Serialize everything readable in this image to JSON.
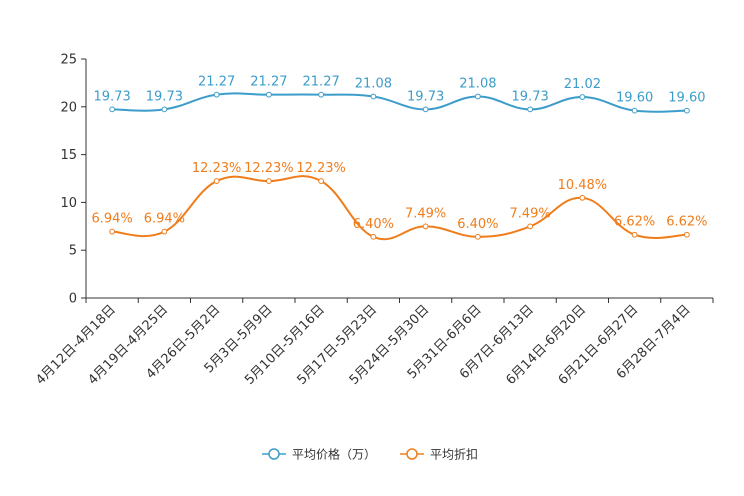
{
  "chart_data": {
    "type": "line",
    "title": "",
    "xlabel": "",
    "ylabel": "",
    "ylim": [
      0,
      25
    ],
    "yticks": [
      0,
      5,
      10,
      15,
      20,
      25
    ],
    "grid": false,
    "legend_position": "bottom",
    "categories": [
      "4月12日-4月18日",
      "4月19日-4月25日",
      "4月26日-5月2日",
      "5月3日-5月9日",
      "5月10日-5月16日",
      "5月17日-5月23日",
      "5月24日-5月30日",
      "5月31日-6月6日",
      "6月7日-6月13日",
      "6月14日-6月20日",
      "6月21日-6月27日",
      "6月28日-7月4日"
    ],
    "series": [
      {
        "name": "平均价格（万）",
        "color": "#3c9dca",
        "values": [
          19.73,
          19.73,
          21.27,
          21.27,
          21.27,
          21.08,
          19.73,
          21.08,
          19.73,
          21.02,
          19.6,
          19.6
        ],
        "labels": [
          "19.73",
          "19.73",
          "21.27",
          "21.27",
          "21.27",
          "21.08",
          "19.73",
          "21.08",
          "19.73",
          "21.02",
          "19.60",
          "19.60"
        ]
      },
      {
        "name": "平均折扣",
        "color": "#f07d1c",
        "values": [
          6.94,
          6.94,
          12.23,
          12.23,
          12.23,
          6.4,
          7.49,
          6.4,
          7.49,
          10.48,
          6.62,
          6.62
        ],
        "labels": [
          "6.94%",
          "6.94%",
          "12.23%",
          "12.23%",
          "12.23%",
          "6.40%",
          "7.49%",
          "6.40%",
          "7.49%",
          "10.48%",
          "6.62%",
          "6.62%"
        ]
      }
    ]
  }
}
